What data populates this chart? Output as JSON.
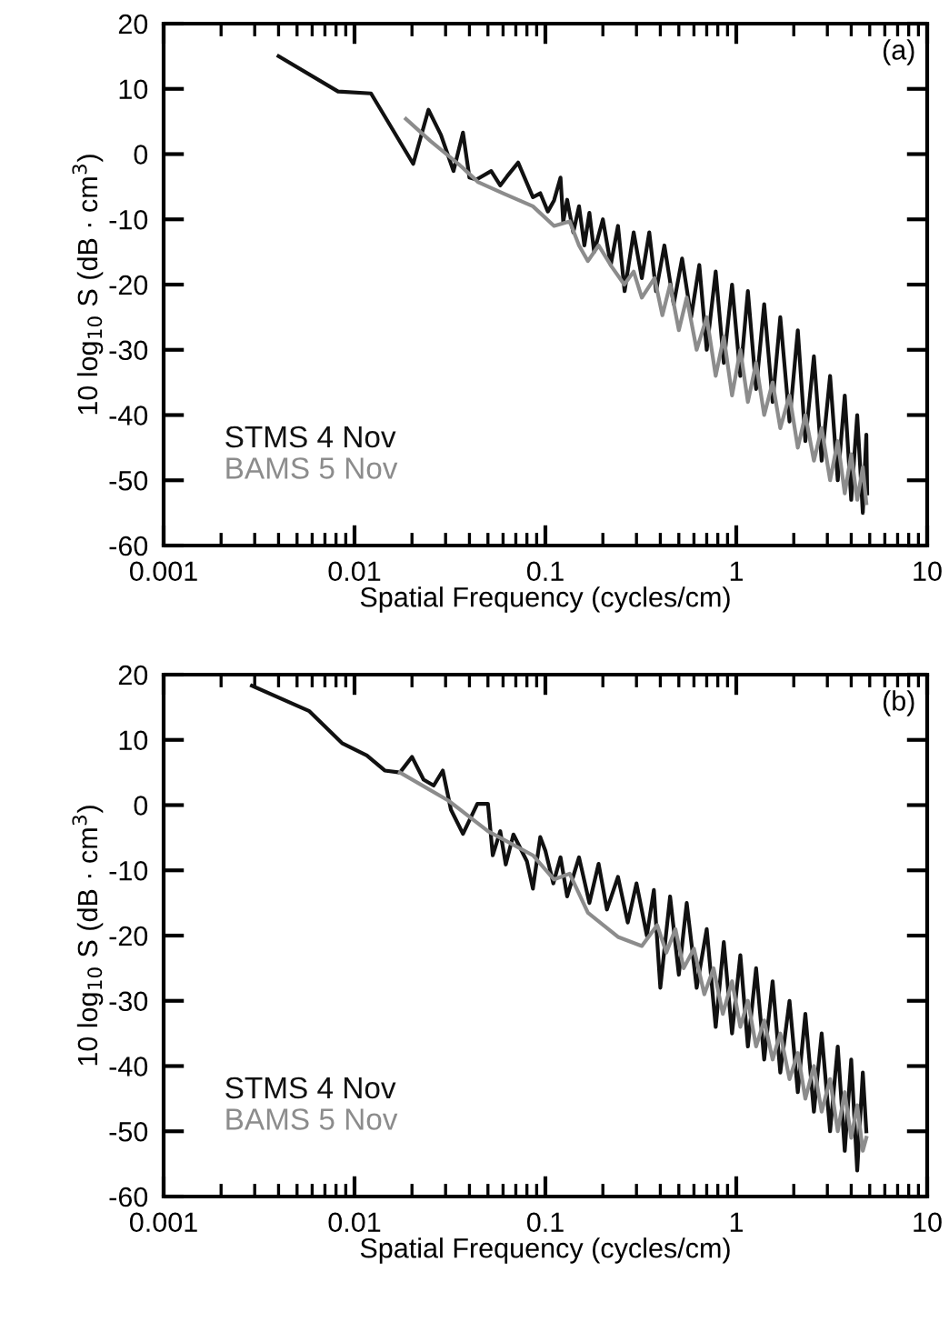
{
  "chart_data": [
    {
      "type": "line",
      "ylabel": "10 log$_{10}$ S (dB · cm$^{3}$)",
      "xlabel": "Spatial Frequency (cycles/cm)",
      "annotations": [
        "(a)"
      ],
      "log": "x",
      "xlim": [
        0.001,
        10
      ],
      "xticks": [
        0.001,
        0.01,
        0.1,
        1,
        10
      ],
      "ylim": [
        -60,
        20
      ],
      "yticks": [
        -60,
        -50,
        -40,
        -30,
        -20,
        -10,
        0,
        10,
        20
      ],
      "grid": false,
      "legend": "bottom left",
      "series": [
        {
          "name": "STMS 4 Nov",
          "color": "#111111",
          "x": [
            0.004,
            0.0082,
            0.0122,
            0.0203,
            0.0244,
            0.0284,
            0.033,
            0.037,
            0.04,
            0.0435,
            0.052,
            0.058,
            0.063,
            0.072,
            0.086,
            0.094,
            0.103,
            0.111,
            0.12,
            0.124,
            0.13,
            0.14,
            0.15,
            0.16,
            0.17,
            0.18,
            0.2,
            0.22,
            0.24,
            0.26,
            0.29,
            0.32,
            0.35,
            0.38,
            0.42,
            0.47,
            0.52,
            0.58,
            0.64,
            0.7,
            0.78,
            0.86,
            0.95,
            1.05,
            1.15,
            1.27,
            1.4,
            1.55,
            1.7,
            1.9,
            2.1,
            2.3,
            2.55,
            2.8,
            3.1,
            3.4,
            3.7,
            4.0,
            4.3,
            4.6,
            4.8,
            4.85
          ],
          "values": [
            15,
            9.6,
            9.3,
            -1.5,
            6.8,
            2.9,
            -2.6,
            3.3,
            -3.6,
            -3.9,
            -2.6,
            -4.8,
            -3.4,
            -1.3,
            -6.6,
            -6,
            -8.8,
            -7.1,
            -3.6,
            -10.4,
            -7,
            -12,
            -8,
            -14,
            -9,
            -15,
            -10,
            -17,
            -11,
            -21,
            -12,
            -19,
            -12,
            -21,
            -14,
            -23,
            -16,
            -25,
            -17,
            -30,
            -18,
            -32,
            -20,
            -34,
            -21,
            -36,
            -23,
            -38,
            -25,
            -41,
            -27,
            -44,
            -31,
            -47,
            -34,
            -50,
            -37,
            -53,
            -40,
            -55,
            -43,
            -52
          ]
        },
        {
          "name": "BAMS 5 Nov",
          "color": "#8c8c8c",
          "x": [
            0.0186,
            0.025,
            0.035,
            0.0445,
            0.06,
            0.086,
            0.111,
            0.134,
            0.15,
            0.167,
            0.19,
            0.223,
            0.259,
            0.29,
            0.32,
            0.373,
            0.41,
            0.45,
            0.5,
            0.55,
            0.62,
            0.7,
            0.78,
            0.86,
            0.95,
            1.05,
            1.15,
            1.27,
            1.4,
            1.55,
            1.7,
            1.9,
            2.1,
            2.3,
            2.55,
            2.8,
            3.1,
            3.4,
            3.7,
            4.0,
            4.3,
            4.6,
            4.8
          ],
          "values": [
            5.4,
            2,
            -1.5,
            -4.3,
            -6,
            -8,
            -11,
            -10.3,
            -14,
            -16.4,
            -14,
            -17.3,
            -20,
            -18,
            -22,
            -19,
            -24.7,
            -20,
            -27,
            -22,
            -30,
            -25,
            -34,
            -28,
            -37,
            -30,
            -38,
            -32,
            -40,
            -35,
            -42,
            -37,
            -45,
            -40,
            -47,
            -42,
            -50,
            -44,
            -52,
            -46,
            -53,
            -48,
            -53.5
          ]
        }
      ]
    },
    {
      "type": "line",
      "ylabel": "10 log$_{10}$ S (dB · cm$^{3}$)",
      "xlabel": "Spatial Frequency (cycles/cm)",
      "annotations": [
        "(b)"
      ],
      "log": "x",
      "xlim": [
        0.001,
        10
      ],
      "xticks": [
        0.001,
        0.01,
        0.1,
        1,
        10
      ],
      "ylim": [
        -60,
        20
      ],
      "yticks": [
        -60,
        -50,
        -40,
        -30,
        -20,
        -10,
        0,
        10,
        20
      ],
      "grid": false,
      "legend": "bottom left",
      "series": [
        {
          "name": "STMS 4 Nov",
          "color": "#111111",
          "x": [
            0.0029,
            0.0058,
            0.0086,
            0.0116,
            0.0144,
            0.0173,
            0.02,
            0.023,
            0.026,
            0.029,
            0.032,
            0.037,
            0.044,
            0.05,
            0.053,
            0.058,
            0.062,
            0.068,
            0.08,
            0.086,
            0.094,
            0.1,
            0.11,
            0.12,
            0.13,
            0.15,
            0.17,
            0.19,
            0.21,
            0.24,
            0.27,
            0.3,
            0.34,
            0.37,
            0.4,
            0.45,
            0.5,
            0.55,
            0.62,
            0.7,
            0.78,
            0.86,
            0.95,
            1.05,
            1.15,
            1.27,
            1.4,
            1.55,
            1.7,
            1.9,
            2.1,
            2.3,
            2.55,
            2.8,
            3.1,
            3.4,
            3.7,
            4.0,
            4.3,
            4.6,
            4.8
          ],
          "values": [
            18.3,
            14.4,
            9.5,
            7.6,
            5.3,
            5,
            7.4,
            3.9,
            3,
            5.3,
            -0.7,
            -4.4,
            0.2,
            0.2,
            -7.7,
            -4,
            -9.1,
            -4.5,
            -8.6,
            -12.8,
            -4.9,
            -7,
            -12,
            -8,
            -14,
            -8,
            -15,
            -9,
            -16,
            -11,
            -18,
            -12,
            -20,
            -13,
            -28,
            -14,
            -26,
            -15,
            -28,
            -19,
            -34,
            -21,
            -35,
            -23,
            -37,
            -25,
            -39,
            -27,
            -41,
            -30,
            -44,
            -32,
            -47,
            -35,
            -50,
            -37,
            -53,
            -39,
            -56,
            -41,
            -50
          ]
        },
        {
          "name": "BAMS 5 Nov",
          "color": "#8c8c8c",
          "x": [
            0.0173,
            0.031,
            0.05,
            0.086,
            0.111,
            0.134,
            0.167,
            0.24,
            0.32,
            0.385,
            0.43,
            0.48,
            0.53,
            0.6,
            0.68,
            0.76,
            0.85,
            0.95,
            1.05,
            1.15,
            1.27,
            1.4,
            1.55,
            1.7,
            1.9,
            2.1,
            2.3,
            2.55,
            2.8,
            3.1,
            3.4,
            3.7,
            4.0,
            4.3,
            4.6,
            4.8
          ],
          "values": [
            5,
            0.7,
            -4,
            -7.7,
            -11.4,
            -10.5,
            -16.5,
            -20.2,
            -21.6,
            -18.4,
            -22.6,
            -19,
            -25,
            -22,
            -29,
            -25,
            -32,
            -27,
            -34,
            -30,
            -37,
            -33,
            -39,
            -35,
            -42,
            -38,
            -45,
            -40,
            -47,
            -42,
            -50,
            -44,
            -51,
            -46,
            -53,
            -51
          ]
        }
      ]
    }
  ]
}
